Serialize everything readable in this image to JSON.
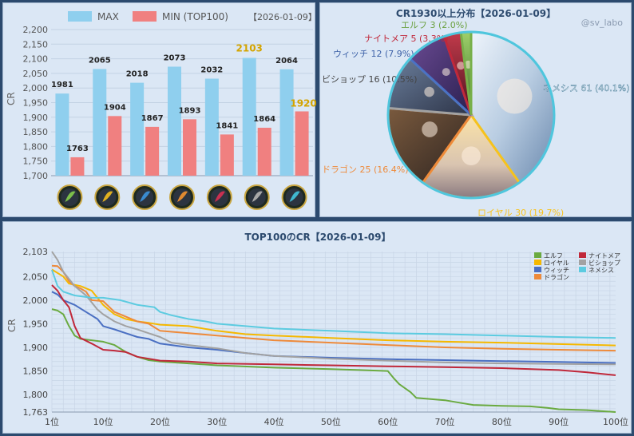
{
  "bar_panel": {
    "legend_max": "MAX",
    "legend_min": "MIN (TOP100)",
    "date": "【2026-01-09】",
    "ylabel": "CR",
    "yticks": [
      "2,200",
      "2,150",
      "2,100",
      "2,050",
      "2,000",
      "1,950",
      "1,900",
      "1,850",
      "1,800",
      "1,750",
      "1,700"
    ],
    "colors": {
      "max": "#8fcfee",
      "min": "#f08080",
      "highlight": "#d4a400"
    },
    "class_icons": [
      "elf-icon",
      "royal-icon",
      "witch-icon",
      "dragon-icon",
      "nightmare-icon",
      "bishop-icon",
      "nemesis-icon"
    ]
  },
  "pie_panel": {
    "title": "CR1930以上分布【2026-01-09】",
    "watermark": "@sv_labo"
  },
  "line_panel": {
    "title": "TOP100のCR【2026-01-09】",
    "ylabel": "CR"
  },
  "chart_data": [
    {
      "type": "bar",
      "categories": [
        "エルフ",
        "ロイヤル",
        "ウィッチ",
        "ドラゴン",
        "ナイトメア",
        "ビショップ",
        "ネメシス"
      ],
      "series": [
        {
          "name": "MAX",
          "values": [
            1981,
            2065,
            2018,
            2073,
            2032,
            2103,
            2064
          ]
        },
        {
          "name": "MIN (TOP100)",
          "values": [
            1763,
            1904,
            1867,
            1893,
            1841,
            1864,
            1920
          ]
        }
      ],
      "highlight": {
        "max_index": 5,
        "min_index": 6
      },
      "ylabel": "CR",
      "ylim": [
        1700,
        2200
      ]
    },
    {
      "type": "pie",
      "title": "CR1930以上分布【2026-01-09】",
      "slices": [
        {
          "label": "ネメシス 61 (40.1%)",
          "value": 61,
          "color": "#5ccbe0",
          "text_color": "#ffffff"
        },
        {
          "label": "ロイヤル 30 (19.7%)",
          "value": 30,
          "color": "#f7c21c",
          "text_color": "#f7c21c"
        },
        {
          "label": "ドラゴン 25 (16.4%)",
          "value": 25,
          "color": "#ee8a3a",
          "text_color": "#ee8a3a"
        },
        {
          "label": "ビショップ 16 (10.5%)",
          "value": 16,
          "color": "#a2a2a2",
          "text_color": "#444444"
        },
        {
          "label": "ウィッチ 12 (7.9%)",
          "value": 12,
          "color": "#4a72c4",
          "text_color": "#3e62a8"
        },
        {
          "label": "ナイトメア 5 (3.3%)",
          "value": 5,
          "color": "#c0283a",
          "text_color": "#c0283a"
        },
        {
          "label": "エルフ 3 (2.0%)",
          "value": 3,
          "color": "#78b04a",
          "text_color": "#6aa03e"
        }
      ]
    },
    {
      "type": "line",
      "title": "TOP100のCR【2026-01-09】",
      "ylabel": "CR",
      "ylim": [
        1763,
        2103
      ],
      "yticks": [
        1763,
        1800,
        1850,
        1900,
        1950,
        2000,
        2050,
        2103
      ],
      "xticks": [
        "1位",
        "10位",
        "20位",
        "30位",
        "40位",
        "50位",
        "60位",
        "70位",
        "80位",
        "90位",
        "100位"
      ],
      "x_range": [
        1,
        100
      ],
      "series": [
        {
          "name": "エルフ",
          "color": "#6aaa40",
          "points": [
            [
              1,
              1981
            ],
            [
              2,
              1978
            ],
            [
              3,
              1970
            ],
            [
              4,
              1945
            ],
            [
              5,
              1925
            ],
            [
              6,
              1918
            ],
            [
              8,
              1915
            ],
            [
              10,
              1912
            ],
            [
              12,
              1905
            ],
            [
              14,
              1890
            ],
            [
              16,
              1880
            ],
            [
              18,
              1873
            ],
            [
              20,
              1870
            ],
            [
              25,
              1866
            ],
            [
              30,
              1862
            ],
            [
              40,
              1857
            ],
            [
              50,
              1854
            ],
            [
              55,
              1852
            ],
            [
              60,
              1850
            ],
            [
              61,
              1835
            ],
            [
              62,
              1822
            ],
            [
              64,
              1805
            ],
            [
              65,
              1793
            ],
            [
              70,
              1788
            ],
            [
              73,
              1782
            ],
            [
              75,
              1778
            ],
            [
              80,
              1776
            ],
            [
              85,
              1775
            ],
            [
              88,
              1772
            ],
            [
              90,
              1769
            ],
            [
              95,
              1767
            ],
            [
              100,
              1763
            ]
          ]
        },
        {
          "name": "ロイヤル",
          "color": "#f5b800",
          "points": [
            [
              1,
              2065
            ],
            [
              3,
              2050
            ],
            [
              4,
              2035
            ],
            [
              6,
              2030
            ],
            [
              8,
              2020
            ],
            [
              10,
              1990
            ],
            [
              12,
              1970
            ],
            [
              14,
              1960
            ],
            [
              16,
              1955
            ],
            [
              18,
              1952
            ],
            [
              20,
              1948
            ],
            [
              25,
              1945
            ],
            [
              30,
              1935
            ],
            [
              35,
              1928
            ],
            [
              40,
              1925
            ],
            [
              50,
              1920
            ],
            [
              60,
              1915
            ],
            [
              70,
              1912
            ],
            [
              80,
              1910
            ],
            [
              90,
              1907
            ],
            [
              100,
              1904
            ]
          ]
        },
        {
          "name": "ウィッチ",
          "color": "#4a6fc2",
          "points": [
            [
              1,
              2018
            ],
            [
              2,
              2012
            ],
            [
              3,
              2000
            ],
            [
              5,
              1990
            ],
            [
              7,
              1975
            ],
            [
              9,
              1960
            ],
            [
              10,
              1945
            ],
            [
              12,
              1938
            ],
            [
              14,
              1930
            ],
            [
              16,
              1922
            ],
            [
              18,
              1918
            ],
            [
              20,
              1908
            ],
            [
              25,
              1900
            ],
            [
              30,
              1895
            ],
            [
              35,
              1888
            ],
            [
              40,
              1882
            ],
            [
              50,
              1878
            ],
            [
              60,
              1875
            ],
            [
              70,
              1873
            ],
            [
              80,
              1871
            ],
            [
              90,
              1869
            ],
            [
              100,
              1867
            ]
          ]
        },
        {
          "name": "ドラゴン",
          "color": "#ee8a3a",
          "points": [
            [
              1,
              2073
            ],
            [
              2,
              2072
            ],
            [
              3,
              2060
            ],
            [
              4,
              2040
            ],
            [
              5,
              2030
            ],
            [
              6,
              2025
            ],
            [
              7,
              2018
            ],
            [
              8,
              2000
            ],
            [
              10,
              1998
            ],
            [
              12,
              1975
            ],
            [
              14,
              1965
            ],
            [
              16,
              1955
            ],
            [
              18,
              1950
            ],
            [
              20,
              1935
            ],
            [
              25,
              1930
            ],
            [
              30,
              1925
            ],
            [
              35,
              1920
            ],
            [
              40,
              1915
            ],
            [
              50,
              1910
            ],
            [
              60,
              1905
            ],
            [
              70,
              1900
            ],
            [
              80,
              1897
            ],
            [
              90,
              1895
            ],
            [
              100,
              1893
            ]
          ]
        },
        {
          "name": "ナイトメア",
          "color": "#c0283a",
          "points": [
            [
              1,
              2032
            ],
            [
              2,
              2020
            ],
            [
              3,
              2000
            ],
            [
              4,
              1985
            ],
            [
              5,
              1945
            ],
            [
              6,
              1920
            ],
            [
              8,
              1908
            ],
            [
              10,
              1895
            ],
            [
              12,
              1893
            ],
            [
              14,
              1890
            ],
            [
              16,
              1880
            ],
            [
              18,
              1876
            ],
            [
              20,
              1872
            ],
            [
              25,
              1870
            ],
            [
              30,
              1866
            ],
            [
              40,
              1864
            ],
            [
              50,
              1862
            ],
            [
              60,
              1860
            ],
            [
              70,
              1858
            ],
            [
              80,
              1856
            ],
            [
              90,
              1852
            ],
            [
              95,
              1847
            ],
            [
              100,
              1841
            ]
          ]
        },
        {
          "name": "ビショップ",
          "color": "#a2a2a2",
          "points": [
            [
              1,
              2103
            ],
            [
              2,
              2085
            ],
            [
              3,
              2060
            ],
            [
              5,
              2030
            ],
            [
              7,
              2010
            ],
            [
              9,
              1980
            ],
            [
              10,
              1970
            ],
            [
              12,
              1955
            ],
            [
              14,
              1945
            ],
            [
              16,
              1938
            ],
            [
              18,
              1930
            ],
            [
              20,
              1922
            ],
            [
              22,
              1910
            ],
            [
              25,
              1905
            ],
            [
              30,
              1898
            ],
            [
              35,
              1888
            ],
            [
              40,
              1882
            ],
            [
              50,
              1876
            ],
            [
              60,
              1872
            ],
            [
              70,
              1868
            ],
            [
              80,
              1866
            ],
            [
              90,
              1865
            ],
            [
              100,
              1864
            ]
          ]
        },
        {
          "name": "ネメシス",
          "color": "#5ccbe0",
          "points": [
            [
              1,
              2064
            ],
            [
              2,
              2030
            ],
            [
              3,
              2018
            ],
            [
              5,
              2010
            ],
            [
              8,
              2005
            ],
            [
              10,
              2005
            ],
            [
              13,
              2000
            ],
            [
              16,
              1990
            ],
            [
              19,
              1985
            ],
            [
              20,
              1975
            ],
            [
              22,
              1968
            ],
            [
              25,
              1960
            ],
            [
              28,
              1955
            ],
            [
              30,
              1950
            ],
            [
              35,
              1945
            ],
            [
              40,
              1940
            ],
            [
              50,
              1935
            ],
            [
              60,
              1930
            ],
            [
              70,
              1928
            ],
            [
              80,
              1925
            ],
            [
              90,
              1922
            ],
            [
              100,
              1920
            ]
          ]
        }
      ],
      "legend_order": [
        "エルフ",
        "ナイトメア",
        "ロイヤル",
        "ビショップ",
        "ウィッチ",
        "ネメシス",
        "ドラゴン"
      ]
    }
  ]
}
